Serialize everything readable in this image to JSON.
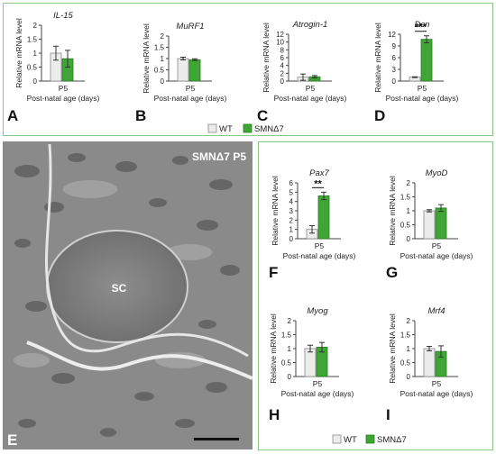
{
  "figure": {
    "colors": {
      "frame": "#8cc78a",
      "wt": "#ececec",
      "wt_edge": "#8a8a8a",
      "smn": "#3fa535",
      "smn_edge": "#2a7a22"
    },
    "legend_top": {
      "wt": "WT",
      "smn": "SMNΔ7"
    },
    "legend_bottom": {
      "wt": "WT",
      "smn": "SMNΔ7"
    },
    "micrograph": {
      "panel": "E",
      "title": "SMNΔ7 P5",
      "label": "SC"
    }
  },
  "chart_data": [
    {
      "type": "bar",
      "panel": "A",
      "title": "IL-15",
      "categories": [
        "P5"
      ],
      "xlabel": "Post-natal age (days)",
      "ylabel": "Relative mRNA level",
      "ylim": [
        0,
        2
      ],
      "yticks": [
        "0",
        "0.5",
        "1",
        "1.5",
        "2"
      ],
      "series": [
        {
          "name": "WT",
          "values": [
            1.0
          ],
          "errors": [
            0.25
          ]
        },
        {
          "name": "SMNΔ7",
          "values": [
            0.8
          ],
          "errors": [
            0.3
          ]
        }
      ]
    },
    {
      "type": "bar",
      "panel": "B",
      "title": "MuRF1",
      "categories": [
        "P5"
      ],
      "xlabel": "Post-natal age (days)",
      "ylabel": "Relative mRNA level",
      "ylim": [
        0,
        2
      ],
      "yticks": [
        "0",
        "0.5",
        "1",
        "1.5",
        "2"
      ],
      "series": [
        {
          "name": "WT",
          "values": [
            1.0
          ],
          "errors": [
            0.06
          ]
        },
        {
          "name": "SMNΔ7",
          "values": [
            0.95
          ],
          "errors": [
            0.04
          ]
        }
      ]
    },
    {
      "type": "bar",
      "panel": "C",
      "title": "Atrogin-1",
      "categories": [
        "P5"
      ],
      "xlabel": "Post-natal age (days)",
      "ylabel": "Relative mRNA level",
      "ylim": [
        0,
        12
      ],
      "yticks": [
        "0",
        "2",
        "4",
        "6",
        "8",
        "10",
        "12"
      ],
      "series": [
        {
          "name": "WT",
          "values": [
            1.0
          ],
          "errors": [
            0.8
          ]
        },
        {
          "name": "SMNΔ7",
          "values": [
            1.1
          ],
          "errors": [
            0.3
          ]
        }
      ]
    },
    {
      "type": "bar",
      "panel": "D",
      "title": "Dcn",
      "categories": [
        "P5"
      ],
      "xlabel": "Post-natal age (days)",
      "ylabel": "Relative mRNA level",
      "ylim": [
        0,
        12
      ],
      "yticks": [
        "0",
        "3",
        "6",
        "9",
        "12"
      ],
      "significance": "***",
      "series": [
        {
          "name": "WT",
          "values": [
            1.0
          ],
          "errors": [
            0.1
          ]
        },
        {
          "name": "SMNΔ7",
          "values": [
            10.7
          ],
          "errors": [
            0.9
          ]
        }
      ]
    },
    {
      "type": "bar",
      "panel": "F",
      "title": "Pax7",
      "categories": [
        "P5"
      ],
      "xlabel": "Post-natal age (days)",
      "ylabel": "Relative mRNA level",
      "ylim": [
        0,
        6
      ],
      "yticks": [
        "0",
        "1",
        "2",
        "3",
        "4",
        "5",
        "6"
      ],
      "significance": "**",
      "series": [
        {
          "name": "WT",
          "values": [
            1.0
          ],
          "errors": [
            0.4
          ]
        },
        {
          "name": "SMNΔ7",
          "values": [
            4.6
          ],
          "errors": [
            0.4
          ]
        }
      ]
    },
    {
      "type": "bar",
      "panel": "G",
      "title": "MyoD",
      "categories": [
        "P5"
      ],
      "xlabel": "Post-natal age (days)",
      "ylabel": "Relative mRNA level",
      "ylim": [
        0,
        2
      ],
      "yticks": [
        "0",
        "0.5",
        "1",
        "1.5",
        "2"
      ],
      "series": [
        {
          "name": "WT",
          "values": [
            1.0
          ],
          "errors": [
            0.04
          ]
        },
        {
          "name": "SMNΔ7",
          "values": [
            1.1
          ],
          "errors": [
            0.12
          ]
        }
      ]
    },
    {
      "type": "bar",
      "panel": "H",
      "title": "Myog",
      "categories": [
        "P5"
      ],
      "xlabel": "Post-natal age (days)",
      "ylabel": "Relative mRNA level",
      "ylim": [
        0,
        2
      ],
      "yticks": [
        "0",
        "0.5",
        "1",
        "1.5",
        "2"
      ],
      "series": [
        {
          "name": "WT",
          "values": [
            1.0
          ],
          "errors": [
            0.12
          ]
        },
        {
          "name": "SMNΔ7",
          "values": [
            1.05
          ],
          "errors": [
            0.17
          ]
        }
      ]
    },
    {
      "type": "bar",
      "panel": "I",
      "title": "Mrf4",
      "categories": [
        "P5"
      ],
      "xlabel": "Post-natal age (days)",
      "ylabel": "Relative mRNA level",
      "ylim": [
        0,
        2
      ],
      "yticks": [
        "0",
        "0.5",
        "1",
        "1.5",
        "2"
      ],
      "series": [
        {
          "name": "WT",
          "values": [
            1.0
          ],
          "errors": [
            0.08
          ]
        },
        {
          "name": "SMNΔ7",
          "values": [
            0.9
          ],
          "errors": [
            0.2
          ]
        }
      ]
    }
  ]
}
